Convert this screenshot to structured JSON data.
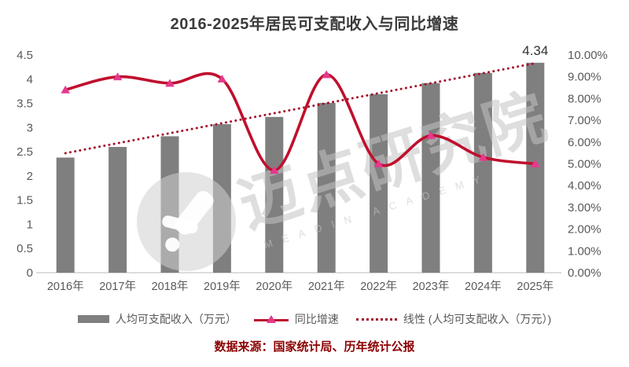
{
  "title": "2016-2025年居民可支配收入与同比增速",
  "source": "数据来源：国家统计局、历年统计公报",
  "watermark": {
    "cn": "迈点研究院",
    "en": "MEADIN ACADEMY"
  },
  "colors": {
    "bar": "#7f7f7f",
    "line": "#c00f2d",
    "marker": "#e5398d",
    "trend": "#a30d28",
    "title": "#3b3b3b",
    "axis_text": "#595959",
    "axis_line": "#d0d0d0",
    "data_label": "#333333",
    "source_text": "#8b0000",
    "watermark_gray": "rgba(200,200,200,0.55)"
  },
  "legend": {
    "items": [
      {
        "label": "人均可支配收入（万元）",
        "swatch": "bar"
      },
      {
        "label": "同比增速",
        "swatch": "line-triangle"
      },
      {
        "label": "线性 (人均可支配收入（万元）)",
        "swatch": "dotted-line"
      }
    ]
  },
  "chart_data": {
    "type": "bar+line combo",
    "title": "2016-2025年居民可支配收入与同比增速",
    "categories": [
      "2016年",
      "2017年",
      "2018年",
      "2019年",
      "2020年",
      "2021年",
      "2022年",
      "2023年",
      "2024年",
      "2025年"
    ],
    "series": [
      {
        "name": "人均可支配收入（万元）",
        "type": "bar",
        "axis": "left",
        "values": [
          2.38,
          2.6,
          2.82,
          3.07,
          3.22,
          3.51,
          3.69,
          3.92,
          4.13,
          4.34
        ]
      },
      {
        "name": "同比增速",
        "type": "smooth-line",
        "axis": "right",
        "values_percent": [
          8.4,
          9.0,
          8.7,
          8.9,
          4.7,
          9.1,
          5.0,
          6.3,
          5.3,
          5.0
        ]
      },
      {
        "name": "线性 (人均可支配收入（万元）)",
        "type": "linear-trendline",
        "axis": "left",
        "endpoint_values": [
          2.47,
          4.33
        ],
        "style": "dotted"
      }
    ],
    "data_labels": [
      {
        "series": 0,
        "category": "2025年",
        "text": "4.34"
      }
    ],
    "left_axis": {
      "min": 0,
      "max": 4.5,
      "step": 0.5,
      "ticks": [
        {
          "v": 0,
          "label": "0"
        },
        {
          "v": 0.5,
          "label": "0.5"
        },
        {
          "v": 1,
          "label": "1"
        },
        {
          "v": 1.5,
          "label": "1.5"
        },
        {
          "v": 2,
          "label": "2"
        },
        {
          "v": 2.5,
          "label": "2.5"
        },
        {
          "v": 3,
          "label": "3"
        },
        {
          "v": 3.5,
          "label": "3.5"
        },
        {
          "v": 4,
          "label": "4"
        },
        {
          "v": 4.5,
          "label": "4.5"
        }
      ]
    },
    "right_axis": {
      "min": 0,
      "max": 10,
      "step": 1,
      "ticks": [
        {
          "v": 0,
          "label": "0.00%"
        },
        {
          "v": 1,
          "label": "1.00%"
        },
        {
          "v": 2,
          "label": "2.00%"
        },
        {
          "v": 3,
          "label": "3.00%"
        },
        {
          "v": 4,
          "label": "4.00%"
        },
        {
          "v": 5,
          "label": "5.00%"
        },
        {
          "v": 6,
          "label": "6.00%"
        },
        {
          "v": 7,
          "label": "7.00%"
        },
        {
          "v": 8,
          "label": "8.00%"
        },
        {
          "v": 9,
          "label": "9.00%"
        },
        {
          "v": 10,
          "label": "10.00%"
        }
      ]
    },
    "grid": false,
    "legend_position": "bottom"
  }
}
